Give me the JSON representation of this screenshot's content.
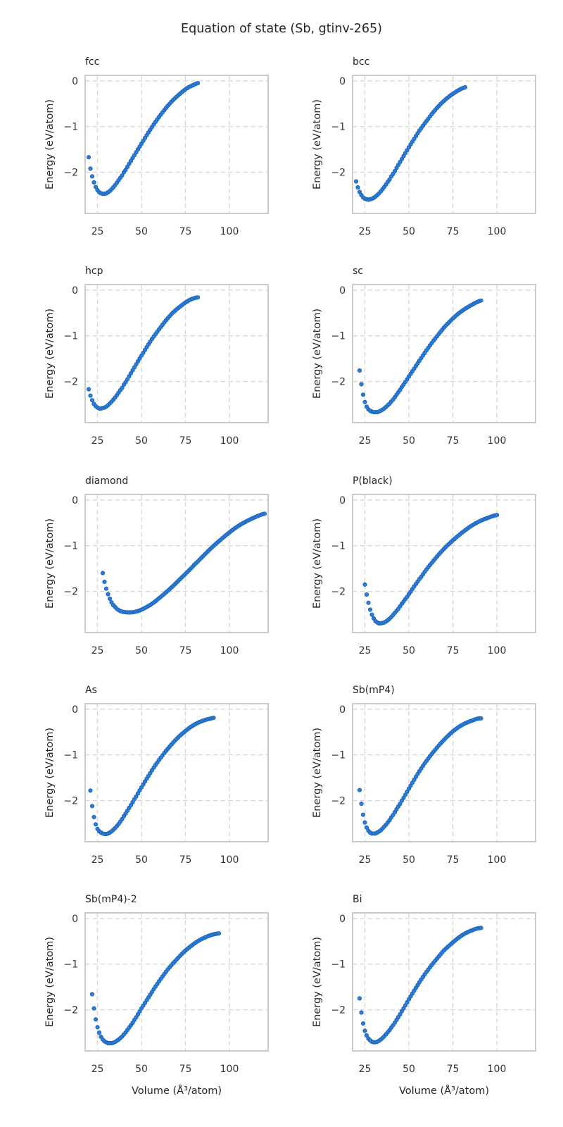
{
  "figure": {
    "title": "Equation of state (Sb, gtinv-265)",
    "xlabel": "Volume (Å³/atom)",
    "ylabel": "Energy (eV/atom)"
  },
  "axes": {
    "xlim": [
      18,
      122
    ],
    "ylim": [
      -2.9,
      0.12
    ],
    "xticks": [
      25,
      50,
      75,
      100
    ],
    "yticks": [
      0,
      -1,
      -2
    ],
    "xtick_labels": [
      "25",
      "50",
      "75",
      "100"
    ],
    "ytick_labels": [
      "0",
      "−1",
      "−2"
    ],
    "grid": true,
    "grid_style": "dashed",
    "grid_color": "#d8d8d8",
    "spine_color": "#cbcbcb",
    "text_color": "#333333",
    "marker_color": "#2b7cd9",
    "marker_edge_color": "#1b62b5",
    "legend": "none"
  },
  "chart_data": [
    {
      "type": "scatter",
      "slug": "fcc",
      "title": "fcc",
      "row": 0,
      "col": 0,
      "show_xlabel": false,
      "x_step": 1,
      "anchors": [
        [
          20,
          -1.67
        ],
        [
          21,
          -1.92
        ],
        [
          22,
          -2.09
        ],
        [
          23,
          -2.22
        ],
        [
          24,
          -2.32
        ],
        [
          25,
          -2.39
        ],
        [
          26,
          -2.44
        ],
        [
          27,
          -2.46
        ],
        [
          28,
          -2.47
        ],
        [
          29,
          -2.47
        ],
        [
          30,
          -2.46
        ],
        [
          32,
          -2.41
        ],
        [
          34,
          -2.33
        ],
        [
          36,
          -2.23
        ],
        [
          38,
          -2.12
        ],
        [
          40,
          -2.0
        ],
        [
          44,
          -1.75
        ],
        [
          48,
          -1.5
        ],
        [
          52,
          -1.25
        ],
        [
          56,
          -1.01
        ],
        [
          60,
          -0.79
        ],
        [
          64,
          -0.59
        ],
        [
          68,
          -0.42
        ],
        [
          72,
          -0.28
        ],
        [
          76,
          -0.16
        ],
        [
          79,
          -0.1
        ],
        [
          82,
          -0.05
        ]
      ]
    },
    {
      "type": "scatter",
      "slug": "bcc",
      "title": "bcc",
      "row": 0,
      "col": 1,
      "show_xlabel": false,
      "x_step": 1,
      "anchors": [
        [
          20,
          -2.2
        ],
        [
          21,
          -2.33
        ],
        [
          22,
          -2.43
        ],
        [
          23,
          -2.5
        ],
        [
          24,
          -2.55
        ],
        [
          25,
          -2.58
        ],
        [
          26,
          -2.59
        ],
        [
          27,
          -2.6
        ],
        [
          28,
          -2.59
        ],
        [
          29,
          -2.58
        ],
        [
          30,
          -2.56
        ],
        [
          32,
          -2.5
        ],
        [
          34,
          -2.42
        ],
        [
          36,
          -2.32
        ],
        [
          38,
          -2.21
        ],
        [
          40,
          -2.09
        ],
        [
          44,
          -1.84
        ],
        [
          48,
          -1.58
        ],
        [
          52,
          -1.33
        ],
        [
          56,
          -1.09
        ],
        [
          60,
          -0.88
        ],
        [
          64,
          -0.68
        ],
        [
          68,
          -0.51
        ],
        [
          72,
          -0.37
        ],
        [
          76,
          -0.26
        ],
        [
          79,
          -0.19
        ],
        [
          82,
          -0.14
        ]
      ]
    },
    {
      "type": "scatter",
      "slug": "hcp",
      "title": "hcp",
      "row": 1,
      "col": 0,
      "show_xlabel": false,
      "x_step": 1,
      "anchors": [
        [
          20,
          -2.17
        ],
        [
          21,
          -2.31
        ],
        [
          22,
          -2.41
        ],
        [
          23,
          -2.49
        ],
        [
          24,
          -2.54
        ],
        [
          25,
          -2.57
        ],
        [
          26,
          -2.59
        ],
        [
          27,
          -2.59
        ],
        [
          28,
          -2.58
        ],
        [
          29,
          -2.57
        ],
        [
          30,
          -2.55
        ],
        [
          32,
          -2.48
        ],
        [
          34,
          -2.4
        ],
        [
          36,
          -2.3
        ],
        [
          38,
          -2.19
        ],
        [
          40,
          -2.07
        ],
        [
          44,
          -1.82
        ],
        [
          48,
          -1.56
        ],
        [
          52,
          -1.31
        ],
        [
          56,
          -1.07
        ],
        [
          60,
          -0.86
        ],
        [
          64,
          -0.66
        ],
        [
          68,
          -0.49
        ],
        [
          72,
          -0.36
        ],
        [
          76,
          -0.25
        ],
        [
          79,
          -0.19
        ],
        [
          82,
          -0.16
        ]
      ]
    },
    {
      "type": "scatter",
      "slug": "sc",
      "title": "sc",
      "row": 1,
      "col": 1,
      "show_xlabel": false,
      "x_step": 1,
      "anchors": [
        [
          22,
          -1.76
        ],
        [
          23,
          -2.06
        ],
        [
          24,
          -2.29
        ],
        [
          25,
          -2.45
        ],
        [
          26,
          -2.55
        ],
        [
          27,
          -2.61
        ],
        [
          28,
          -2.64
        ],
        [
          29,
          -2.66
        ],
        [
          30,
          -2.67
        ],
        [
          31,
          -2.67
        ],
        [
          32,
          -2.67
        ],
        [
          34,
          -2.64
        ],
        [
          36,
          -2.59
        ],
        [
          38,
          -2.52
        ],
        [
          40,
          -2.44
        ],
        [
          43,
          -2.29
        ],
        [
          46,
          -2.12
        ],
        [
          50,
          -1.89
        ],
        [
          54,
          -1.66
        ],
        [
          58,
          -1.43
        ],
        [
          62,
          -1.21
        ],
        [
          66,
          -1.01
        ],
        [
          70,
          -0.82
        ],
        [
          74,
          -0.66
        ],
        [
          78,
          -0.52
        ],
        [
          82,
          -0.41
        ],
        [
          86,
          -0.32
        ],
        [
          89,
          -0.26
        ],
        [
          91,
          -0.23
        ]
      ]
    },
    {
      "type": "scatter",
      "slug": "diamond",
      "title": "diamond",
      "row": 2,
      "col": 0,
      "show_xlabel": false,
      "x_step": 1,
      "anchors": [
        [
          28,
          -1.6
        ],
        [
          29,
          -1.79
        ],
        [
          30,
          -1.94
        ],
        [
          31,
          -2.06
        ],
        [
          32,
          -2.16
        ],
        [
          33,
          -2.24
        ],
        [
          34,
          -2.3
        ],
        [
          36,
          -2.38
        ],
        [
          38,
          -2.43
        ],
        [
          40,
          -2.45
        ],
        [
          42,
          -2.46
        ],
        [
          44,
          -2.46
        ],
        [
          46,
          -2.45
        ],
        [
          48,
          -2.43
        ],
        [
          50,
          -2.4
        ],
        [
          53,
          -2.34
        ],
        [
          56,
          -2.27
        ],
        [
          60,
          -2.15
        ],
        [
          64,
          -2.02
        ],
        [
          68,
          -1.88
        ],
        [
          72,
          -1.73
        ],
        [
          76,
          -1.58
        ],
        [
          80,
          -1.42
        ],
        [
          85,
          -1.23
        ],
        [
          90,
          -1.04
        ],
        [
          95,
          -0.87
        ],
        [
          100,
          -0.71
        ],
        [
          105,
          -0.57
        ],
        [
          110,
          -0.46
        ],
        [
          115,
          -0.37
        ],
        [
          120,
          -0.3
        ]
      ]
    },
    {
      "type": "scatter",
      "slug": "p-black",
      "title": "P(black)",
      "row": 2,
      "col": 1,
      "show_xlabel": false,
      "x_step": 1,
      "anchors": [
        [
          25,
          -1.85
        ],
        [
          26,
          -2.07
        ],
        [
          27,
          -2.25
        ],
        [
          28,
          -2.4
        ],
        [
          29,
          -2.51
        ],
        [
          30,
          -2.59
        ],
        [
          31,
          -2.65
        ],
        [
          32,
          -2.68
        ],
        [
          33,
          -2.7
        ],
        [
          34,
          -2.7
        ],
        [
          35,
          -2.69
        ],
        [
          36,
          -2.68
        ],
        [
          38,
          -2.63
        ],
        [
          40,
          -2.56
        ],
        [
          42,
          -2.47
        ],
        [
          44,
          -2.38
        ],
        [
          46,
          -2.27
        ],
        [
          48,
          -2.17
        ],
        [
          50,
          -2.06
        ],
        [
          53,
          -1.89
        ],
        [
          56,
          -1.73
        ],
        [
          60,
          -1.52
        ],
        [
          64,
          -1.33
        ],
        [
          68,
          -1.15
        ],
        [
          72,
          -0.99
        ],
        [
          76,
          -0.85
        ],
        [
          80,
          -0.72
        ],
        [
          85,
          -0.58
        ],
        [
          90,
          -0.47
        ],
        [
          95,
          -0.39
        ],
        [
          100,
          -0.33
        ]
      ]
    },
    {
      "type": "scatter",
      "slug": "as",
      "title": "As",
      "row": 3,
      "col": 0,
      "show_xlabel": false,
      "x_step": 1,
      "anchors": [
        [
          21,
          -1.78
        ],
        [
          22,
          -2.12
        ],
        [
          23,
          -2.36
        ],
        [
          24,
          -2.52
        ],
        [
          25,
          -2.62
        ],
        [
          26,
          -2.67
        ],
        [
          27,
          -2.7
        ],
        [
          28,
          -2.72
        ],
        [
          29,
          -2.73
        ],
        [
          30,
          -2.73
        ],
        [
          31,
          -2.72
        ],
        [
          32,
          -2.7
        ],
        [
          34,
          -2.64
        ],
        [
          36,
          -2.56
        ],
        [
          38,
          -2.46
        ],
        [
          40,
          -2.34
        ],
        [
          43,
          -2.16
        ],
        [
          46,
          -1.97
        ],
        [
          50,
          -1.71
        ],
        [
          54,
          -1.46
        ],
        [
          58,
          -1.22
        ],
        [
          62,
          -1.01
        ],
        [
          66,
          -0.82
        ],
        [
          70,
          -0.65
        ],
        [
          74,
          -0.51
        ],
        [
          78,
          -0.39
        ],
        [
          82,
          -0.3
        ],
        [
          86,
          -0.24
        ],
        [
          89,
          -0.21
        ],
        [
          91,
          -0.19
        ]
      ]
    },
    {
      "type": "scatter",
      "slug": "sb-mp4",
      "title": "Sb(mP4)",
      "row": 3,
      "col": 1,
      "show_xlabel": false,
      "x_step": 1,
      "anchors": [
        [
          22,
          -1.77
        ],
        [
          23,
          -2.07
        ],
        [
          24,
          -2.31
        ],
        [
          25,
          -2.48
        ],
        [
          26,
          -2.59
        ],
        [
          27,
          -2.66
        ],
        [
          28,
          -2.7
        ],
        [
          29,
          -2.72
        ],
        [
          30,
          -2.72
        ],
        [
          31,
          -2.72
        ],
        [
          32,
          -2.7
        ],
        [
          34,
          -2.65
        ],
        [
          36,
          -2.57
        ],
        [
          38,
          -2.48
        ],
        [
          40,
          -2.37
        ],
        [
          43,
          -2.19
        ],
        [
          46,
          -2.0
        ],
        [
          50,
          -1.74
        ],
        [
          54,
          -1.48
        ],
        [
          58,
          -1.24
        ],
        [
          62,
          -1.03
        ],
        [
          66,
          -0.84
        ],
        [
          70,
          -0.67
        ],
        [
          74,
          -0.52
        ],
        [
          78,
          -0.4
        ],
        [
          82,
          -0.31
        ],
        [
          86,
          -0.25
        ],
        [
          89,
          -0.21
        ],
        [
          91,
          -0.2
        ]
      ]
    },
    {
      "type": "scatter",
      "slug": "sb-mp4-2",
      "title": "Sb(mP4)-2",
      "row": 4,
      "col": 0,
      "show_xlabel": true,
      "x_step": 1,
      "anchors": [
        [
          22,
          -1.66
        ],
        [
          23,
          -1.97
        ],
        [
          24,
          -2.21
        ],
        [
          25,
          -2.38
        ],
        [
          26,
          -2.5
        ],
        [
          27,
          -2.59
        ],
        [
          28,
          -2.65
        ],
        [
          29,
          -2.69
        ],
        [
          30,
          -2.71
        ],
        [
          31,
          -2.73
        ],
        [
          32,
          -2.73
        ],
        [
          33,
          -2.73
        ],
        [
          34,
          -2.72
        ],
        [
          36,
          -2.68
        ],
        [
          38,
          -2.62
        ],
        [
          40,
          -2.54
        ],
        [
          43,
          -2.39
        ],
        [
          46,
          -2.22
        ],
        [
          50,
          -1.97
        ],
        [
          54,
          -1.73
        ],
        [
          58,
          -1.49
        ],
        [
          62,
          -1.27
        ],
        [
          66,
          -1.07
        ],
        [
          70,
          -0.9
        ],
        [
          74,
          -0.74
        ],
        [
          78,
          -0.61
        ],
        [
          82,
          -0.5
        ],
        [
          86,
          -0.42
        ],
        [
          90,
          -0.36
        ],
        [
          94,
          -0.33
        ]
      ]
    },
    {
      "type": "scatter",
      "slug": "bi",
      "title": "Bi",
      "row": 4,
      "col": 1,
      "show_xlabel": true,
      "x_step": 1,
      "anchors": [
        [
          22,
          -1.75
        ],
        [
          23,
          -2.06
        ],
        [
          24,
          -2.3
        ],
        [
          25,
          -2.46
        ],
        [
          26,
          -2.56
        ],
        [
          27,
          -2.63
        ],
        [
          28,
          -2.67
        ],
        [
          29,
          -2.7
        ],
        [
          30,
          -2.71
        ],
        [
          31,
          -2.71
        ],
        [
          32,
          -2.7
        ],
        [
          34,
          -2.65
        ],
        [
          36,
          -2.58
        ],
        [
          38,
          -2.49
        ],
        [
          40,
          -2.39
        ],
        [
          43,
          -2.22
        ],
        [
          46,
          -2.03
        ],
        [
          50,
          -1.77
        ],
        [
          54,
          -1.52
        ],
        [
          58,
          -1.28
        ],
        [
          62,
          -1.07
        ],
        [
          66,
          -0.88
        ],
        [
          70,
          -0.7
        ],
        [
          74,
          -0.56
        ],
        [
          78,
          -0.43
        ],
        [
          82,
          -0.33
        ],
        [
          86,
          -0.26
        ],
        [
          89,
          -0.22
        ],
        [
          91,
          -0.21
        ]
      ]
    }
  ]
}
